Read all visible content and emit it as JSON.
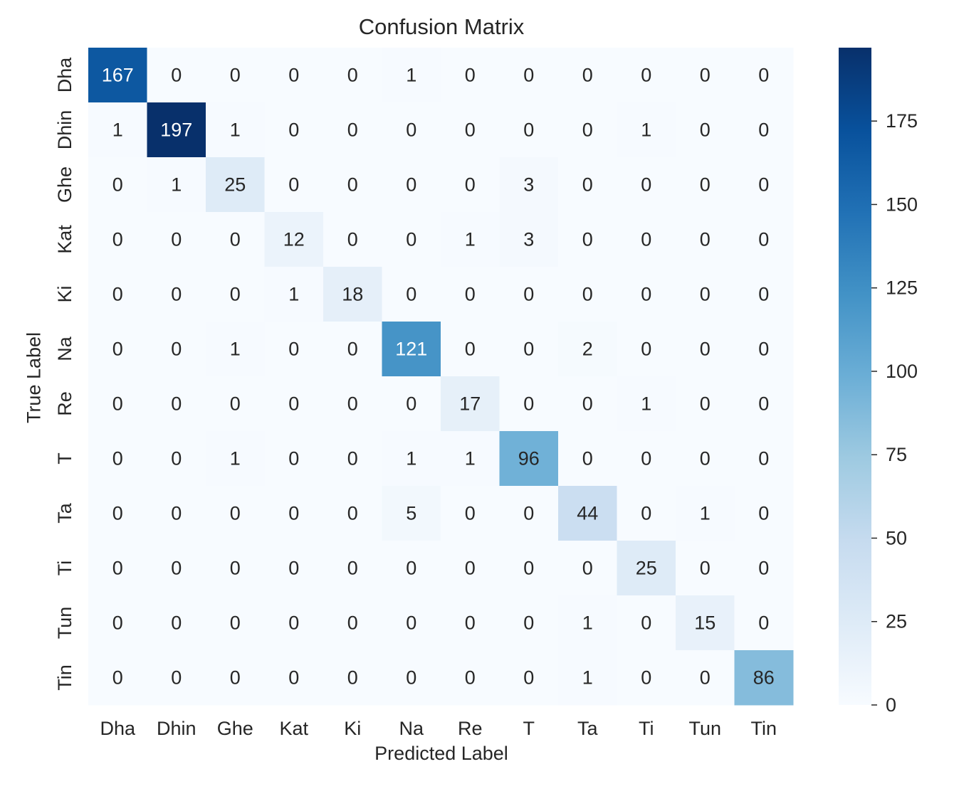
{
  "chart_data": {
    "type": "heatmap",
    "title": "Confusion Matrix",
    "xlabel": "Predicted Label",
    "ylabel": "True Label",
    "x_categories": [
      "Dha",
      "Dhin",
      "Ghe",
      "Kat",
      "Ki",
      "Na",
      "Re",
      "T",
      "Ta",
      "Ti",
      "Tun",
      "Tin"
    ],
    "y_categories": [
      "Dha",
      "Dhin",
      "Ghe",
      "Kat",
      "Ki",
      "Na",
      "Re",
      "T",
      "Ta",
      "Ti",
      "Tun",
      "Tin"
    ],
    "values": [
      [
        167,
        0,
        0,
        0,
        0,
        1,
        0,
        0,
        0,
        0,
        0,
        0
      ],
      [
        1,
        197,
        1,
        0,
        0,
        0,
        0,
        0,
        0,
        1,
        0,
        0
      ],
      [
        0,
        1,
        25,
        0,
        0,
        0,
        0,
        3,
        0,
        0,
        0,
        0
      ],
      [
        0,
        0,
        0,
        12,
        0,
        0,
        1,
        3,
        0,
        0,
        0,
        0
      ],
      [
        0,
        0,
        0,
        1,
        18,
        0,
        0,
        0,
        0,
        0,
        0,
        0
      ],
      [
        0,
        0,
        1,
        0,
        0,
        121,
        0,
        0,
        2,
        0,
        0,
        0
      ],
      [
        0,
        0,
        0,
        0,
        0,
        0,
        17,
        0,
        0,
        1,
        0,
        0
      ],
      [
        0,
        0,
        1,
        0,
        0,
        1,
        1,
        96,
        0,
        0,
        0,
        0
      ],
      [
        0,
        0,
        0,
        0,
        0,
        5,
        0,
        0,
        44,
        0,
        1,
        0
      ],
      [
        0,
        0,
        0,
        0,
        0,
        0,
        0,
        0,
        0,
        25,
        0,
        0
      ],
      [
        0,
        0,
        0,
        0,
        0,
        0,
        0,
        0,
        1,
        0,
        15,
        0
      ],
      [
        0,
        0,
        0,
        0,
        0,
        0,
        0,
        0,
        1,
        0,
        0,
        86
      ]
    ],
    "colorbar": {
      "range": [
        0,
        197
      ],
      "ticks": [
        0,
        25,
        50,
        75,
        100,
        125,
        150,
        175
      ]
    },
    "colormap": "Blues",
    "colormap_stops": [
      "#f7fbff",
      "#deebf7",
      "#c6dbef",
      "#9ecae1",
      "#6baed6",
      "#4292c6",
      "#2171b5",
      "#08519c",
      "#08306b"
    ],
    "text_colors": {
      "light": "#ffffff",
      "dark": "#262626"
    },
    "grid": false
  }
}
